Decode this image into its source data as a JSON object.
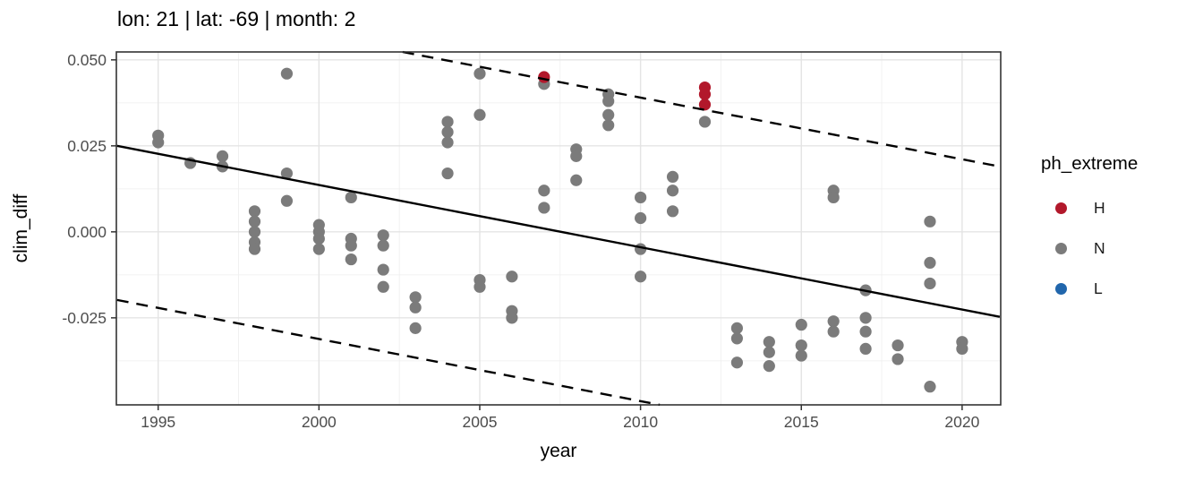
{
  "title": "lon: 21 | lat: -69 | month: 2",
  "legend": {
    "title": "ph_extreme",
    "items": [
      {
        "label": "H",
        "color": "#b2182b"
      },
      {
        "label": "N",
        "color": "#7b7b7b"
      },
      {
        "label": "L",
        "color": "#2166ac"
      }
    ]
  },
  "chart_data": {
    "type": "scatter",
    "title": "lon: 21 | lat: -69 | month: 2",
    "xlabel": "year",
    "ylabel": "clim_diff",
    "xlim": [
      1993.7,
      2021.2
    ],
    "ylim": [
      -0.0503,
      0.0523
    ],
    "x_ticks": [
      1995,
      2000,
      2005,
      2010,
      2015,
      2020
    ],
    "x_tick_labels": [
      "1995",
      "2000",
      "2005",
      "2010",
      "2015",
      "2020"
    ],
    "y_ticks": [
      0.05,
      0.025,
      0.0,
      -0.025
    ],
    "y_tick_labels": [
      "0.050",
      "0.025",
      "0.000",
      "-0.025"
    ],
    "x_minor_ticks": [
      1997.5,
      2002.5,
      2007.5,
      2012.5,
      2017.5
    ],
    "y_minor_ticks": [
      0.0375,
      0.0125,
      -0.0125,
      -0.0375
    ],
    "grid": true,
    "legend_position": "right",
    "series": [
      {
        "name": "N",
        "color": "#7b7b7b",
        "points": [
          [
            1995,
            0.028
          ],
          [
            1995,
            0.026
          ],
          [
            1996,
            0.02
          ],
          [
            1997,
            0.022
          ],
          [
            1997,
            0.019
          ],
          [
            1998,
            0.006
          ],
          [
            1998,
            0.003
          ],
          [
            1998,
            0.0
          ],
          [
            1998,
            -0.003
          ],
          [
            1998,
            -0.005
          ],
          [
            1999,
            0.046
          ],
          [
            1999,
            0.017
          ],
          [
            1999,
            0.009
          ],
          [
            2000,
            0.002
          ],
          [
            2000,
            0.0
          ],
          [
            2000,
            -0.002
          ],
          [
            2000,
            -0.005
          ],
          [
            2001,
            0.01
          ],
          [
            2001,
            -0.002
          ],
          [
            2001,
            -0.004
          ],
          [
            2001,
            -0.008
          ],
          [
            2002,
            -0.001
          ],
          [
            2002,
            -0.004
          ],
          [
            2002,
            -0.011
          ],
          [
            2002,
            -0.016
          ],
          [
            2003,
            -0.019
          ],
          [
            2003,
            -0.022
          ],
          [
            2003,
            -0.028
          ],
          [
            2004,
            0.032
          ],
          [
            2004,
            0.029
          ],
          [
            2004,
            0.026
          ],
          [
            2004,
            0.017
          ],
          [
            2005,
            0.046
          ],
          [
            2005,
            0.034
          ],
          [
            2005,
            -0.014
          ],
          [
            2005,
            -0.016
          ],
          [
            2006,
            -0.013
          ],
          [
            2006,
            -0.023
          ],
          [
            2006,
            -0.025
          ],
          [
            2007,
            0.043
          ],
          [
            2007,
            0.012
          ],
          [
            2007,
            0.007
          ],
          [
            2008,
            0.024
          ],
          [
            2008,
            0.022
          ],
          [
            2008,
            0.015
          ],
          [
            2009,
            0.04
          ],
          [
            2009,
            0.038
          ],
          [
            2009,
            0.034
          ],
          [
            2009,
            0.031
          ],
          [
            2010,
            0.01
          ],
          [
            2010,
            0.004
          ],
          [
            2010,
            -0.005
          ],
          [
            2010,
            -0.013
          ],
          [
            2011,
            0.016
          ],
          [
            2011,
            0.012
          ],
          [
            2011,
            0.006
          ],
          [
            2012,
            0.032
          ],
          [
            2013,
            -0.028
          ],
          [
            2013,
            -0.031
          ],
          [
            2013,
            -0.038
          ],
          [
            2014,
            -0.032
          ],
          [
            2014,
            -0.035
          ],
          [
            2014,
            -0.039
          ],
          [
            2015,
            -0.027
          ],
          [
            2015,
            -0.033
          ],
          [
            2015,
            -0.036
          ],
          [
            2016,
            0.012
          ],
          [
            2016,
            0.01
          ],
          [
            2016,
            -0.026
          ],
          [
            2016,
            -0.029
          ],
          [
            2017,
            -0.017
          ],
          [
            2017,
            -0.025
          ],
          [
            2017,
            -0.029
          ],
          [
            2017,
            -0.034
          ],
          [
            2018,
            -0.033
          ],
          [
            2018,
            -0.037
          ],
          [
            2019,
            0.003
          ],
          [
            2019,
            -0.009
          ],
          [
            2019,
            -0.015
          ],
          [
            2019,
            -0.045
          ],
          [
            2020,
            -0.032
          ],
          [
            2020,
            -0.034
          ]
        ]
      },
      {
        "name": "H",
        "color": "#b2182b",
        "points": [
          [
            2007,
            0.045
          ],
          [
            2012,
            0.042
          ],
          [
            2012,
            0.04
          ],
          [
            2012,
            0.037
          ]
        ]
      },
      {
        "name": "L",
        "color": "#2166ac",
        "points": []
      }
    ],
    "lines": [
      {
        "name": "fit-line",
        "style": "solid",
        "x1": 1993.72,
        "y1": 0.025,
        "x2": 2021.17,
        "y2": -0.0247
      },
      {
        "name": "upper-interval-line",
        "style": "dashed",
        "x1": 2002.6,
        "y1": 0.0523,
        "x2": 2021.17,
        "y2": 0.019
      },
      {
        "name": "lower-interval-line",
        "style": "dashed",
        "x1": 1993.72,
        "y1": -0.0198,
        "x2": 2010.6,
        "y2": -0.0503
      }
    ]
  }
}
